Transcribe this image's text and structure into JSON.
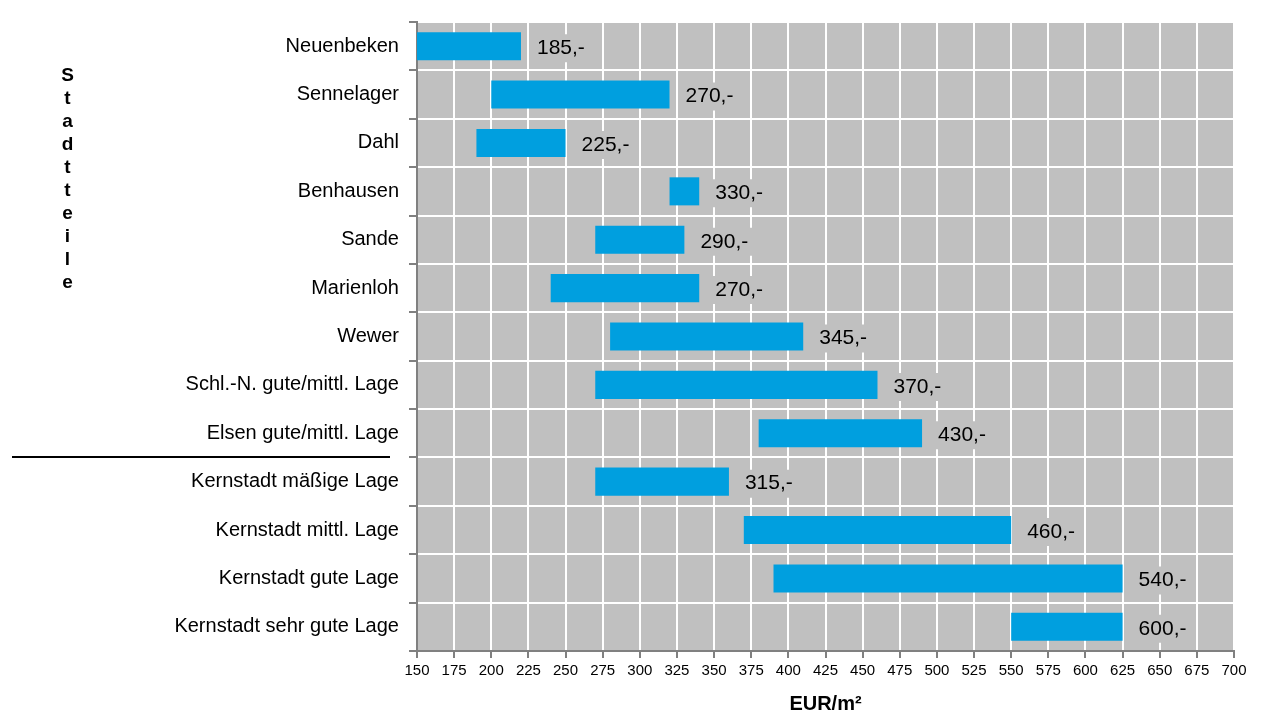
{
  "chart_data": {
    "type": "bar",
    "orientation": "horizontal",
    "categories": [
      "Neuenbeken",
      "Sennelager",
      "Dahl",
      "Benhausen",
      "Sande",
      "Marienloh",
      "Wewer",
      "Schl.-N. gute/mittl. Lage",
      "Elsen gute/mittl. Lage",
      "Kernstadt mäßige Lage",
      "Kernstadt mittl. Lage",
      "Kernstadt gute Lage",
      "Kernstadt sehr gute Lage"
    ],
    "base": [
      150,
      200,
      190,
      320,
      270,
      240,
      280,
      270,
      380,
      270,
      370,
      390,
      550
    ],
    "values": [
      70,
      120,
      60,
      20,
      60,
      100,
      130,
      190,
      110,
      90,
      180,
      235,
      75
    ],
    "annotations": [
      "185,-",
      "270,-",
      "225,-",
      "330,-",
      "290,-",
      "270,-",
      "345,-",
      "370,-",
      "430,-",
      "315,-",
      "460,-",
      "540,-",
      "600,-",
      "Stadtteile"
    ],
    "color": "#009fdf",
    "xlabel": "EUR/m²",
    "xlim": [
      150,
      700
    ],
    "xticks": [
      150,
      175,
      200,
      225,
      250,
      275,
      300,
      325,
      350,
      375,
      400,
      425,
      450,
      475,
      500,
      525,
      550,
      575,
      600,
      625,
      650,
      675,
      700
    ],
    "grid": true,
    "legend": false
  }
}
